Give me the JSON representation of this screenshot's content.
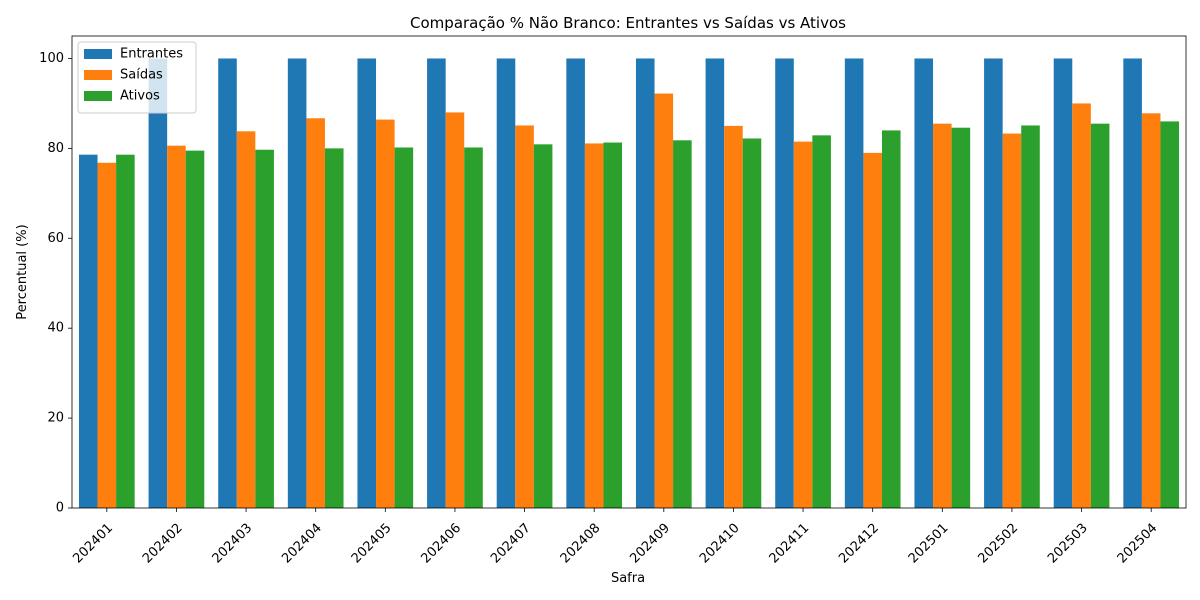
{
  "chart_data": {
    "type": "bar",
    "title": "Comparação % Não Branco: Entrantes vs Saídas vs Ativos",
    "xlabel": "Safra",
    "ylabel": "Percentual (%)",
    "ylim": [
      0,
      105
    ],
    "yticks": [
      0,
      20,
      40,
      60,
      80,
      100
    ],
    "grid": false,
    "legend_position": "top-left",
    "categories": [
      "202401",
      "202402",
      "202403",
      "202404",
      "202405",
      "202406",
      "202407",
      "202408",
      "202409",
      "202410",
      "202411",
      "202412",
      "202501",
      "202502",
      "202503",
      "202504"
    ],
    "series": [
      {
        "name": "Entrantes",
        "color": "#1f77b4",
        "values": [
          78.6,
          100,
          100,
          100,
          100,
          100,
          100,
          100,
          100,
          100,
          100,
          100,
          100,
          100,
          100,
          100
        ]
      },
      {
        "name": "Saídas",
        "color": "#ff7f0e",
        "values": [
          76.8,
          80.6,
          83.8,
          86.7,
          86.4,
          88.0,
          85.1,
          81.1,
          92.2,
          85.0,
          81.5,
          79.0,
          85.5,
          83.3,
          90.0,
          87.8
        ]
      },
      {
        "name": "Ativos",
        "color": "#2ca02c",
        "values": [
          78.6,
          79.5,
          79.7,
          80.0,
          80.2,
          80.2,
          80.9,
          81.3,
          81.8,
          82.2,
          82.9,
          84.0,
          84.6,
          85.1,
          85.5,
          86.0
        ]
      }
    ]
  }
}
